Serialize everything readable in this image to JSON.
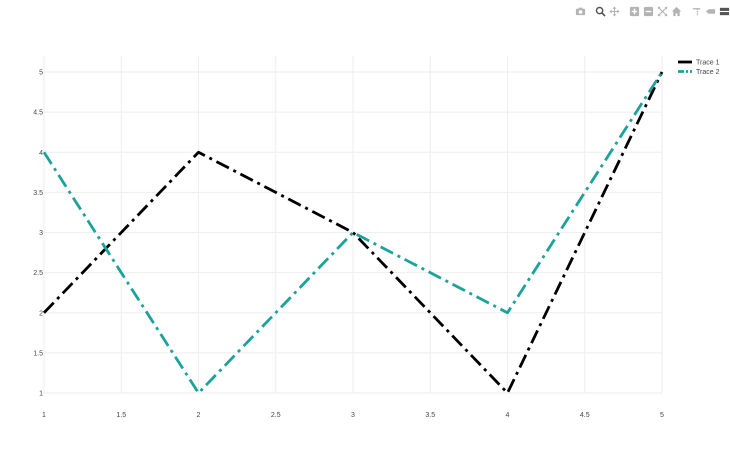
{
  "modebar": {
    "buttons": [
      {
        "name": "camera-icon",
        "title": "Download plot as a png"
      },
      {
        "name": "zoom-icon",
        "title": "Zoom"
      },
      {
        "name": "pan-icon",
        "title": "Pan"
      },
      {
        "name": "zoom-in-icon",
        "title": "Zoom in"
      },
      {
        "name": "zoom-out-icon",
        "title": "Zoom out"
      },
      {
        "name": "autoscale-icon",
        "title": "Autoscale"
      },
      {
        "name": "home-icon",
        "title": "Reset axes"
      },
      {
        "name": "spike-lines-icon",
        "title": "Toggle Spike Lines"
      },
      {
        "name": "hover-closest-icon",
        "title": "Show closest data on hover"
      },
      {
        "name": "hover-compare-icon",
        "title": "Compare data on hover"
      },
      {
        "name": "plotly-logo-icon",
        "title": "Produced with Plotly"
      }
    ]
  },
  "chart_data": {
    "type": "line",
    "title": "",
    "xlabel": "",
    "ylabel": "",
    "xlim": [
      1,
      5
    ],
    "ylim": [
      1,
      5
    ],
    "xticks": [
      "1",
      "1.5",
      "2",
      "2.5",
      "3",
      "3.5",
      "4",
      "4.5",
      "5"
    ],
    "yticks": [
      "1",
      "1.5",
      "2",
      "2.5",
      "3",
      "3.5",
      "4",
      "4.5",
      "5"
    ],
    "grid": true,
    "legend_position": "top-right",
    "series": [
      {
        "name": "Trace 1",
        "x": [
          1,
          2,
          3,
          4,
          5
        ],
        "y": [
          2,
          4,
          3,
          1,
          5
        ],
        "color": "#000000",
        "dash": "dashdot"
      },
      {
        "name": "Trace 2",
        "x": [
          1,
          2,
          3,
          4,
          5
        ],
        "y": [
          4,
          1,
          3,
          2,
          5
        ],
        "color": "#1aa39a",
        "dash": "dashdot"
      }
    ]
  }
}
